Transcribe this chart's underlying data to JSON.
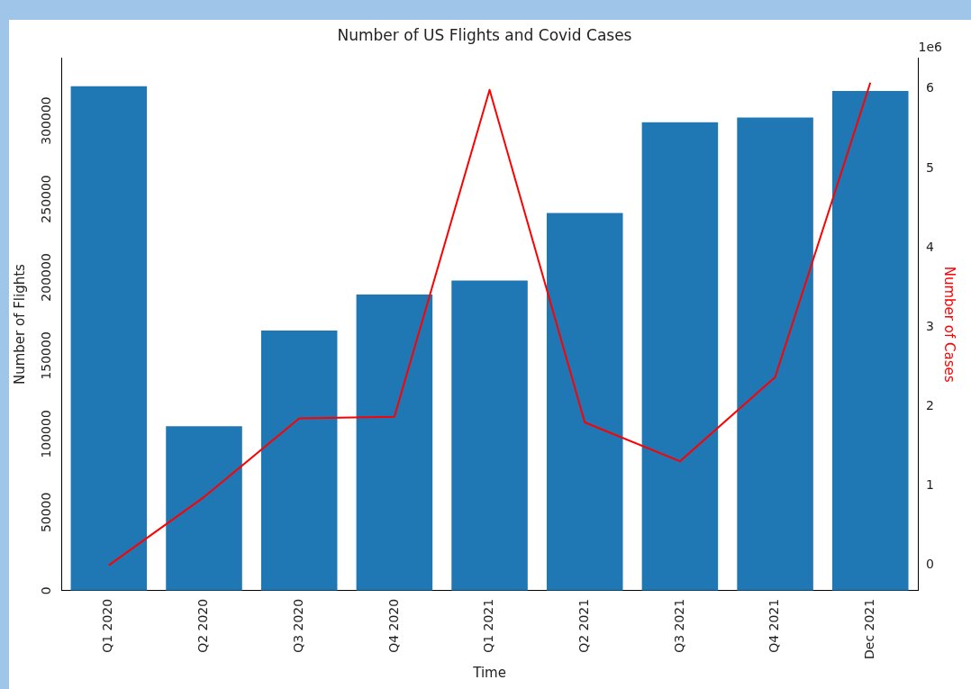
{
  "chart_data": {
    "type": "bar",
    "title": "Number of US Flights and Covid Cases",
    "xlabel": "Time",
    "ylabel": "Number of Flights",
    "y2label": "Number of Cases",
    "categories": [
      "Q1 2020",
      "Q2 2020",
      "Q3 2020",
      "Q4 2020",
      "Q1 2021",
      "Q2 2021",
      "Q3 2021",
      "Q4 2021",
      "Dec 2021"
    ],
    "series": [
      {
        "color": "#1f77b4",
        "values": [
          322000,
          105000,
          166000,
          189000,
          198000,
          241000,
          299000,
          302000,
          319000
        ]
      },
      {
        "type": "line",
        "axis": "y2",
        "color": "#ff0000",
        "values": [
          0,
          0.86,
          1.85,
          1.87,
          5.99,
          1.8,
          1.31,
          2.37,
          6.08
        ]
      }
    ],
    "ylim": [
      0,
      340000
    ],
    "yticks": [
      0,
      50000,
      100000,
      150000,
      200000,
      250000,
      300000
    ],
    "y2lim": [
      -0.32,
      6.39
    ],
    "y2ticks": [
      0,
      1,
      2,
      3,
      4,
      5,
      6
    ],
    "annotations": [
      "1e6"
    ],
    "grid": false,
    "legend": false,
    "marker": "none",
    "line_style": "solid"
  }
}
